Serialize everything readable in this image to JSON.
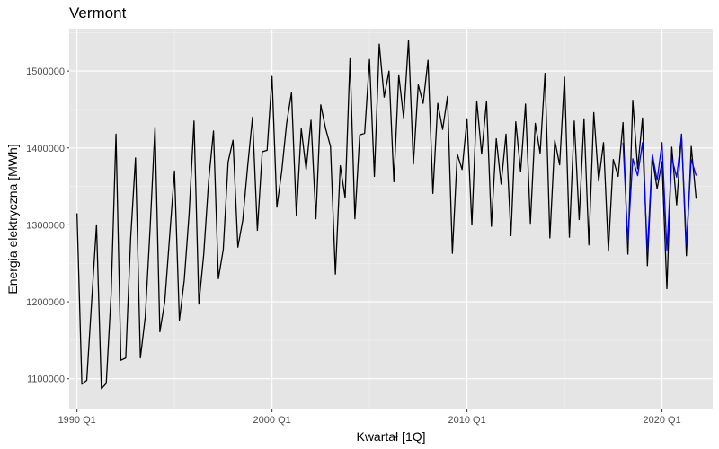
{
  "chart_data": {
    "type": "line",
    "title": "Vermont",
    "xlabel": "Kwartał [1Q]",
    "ylabel": "Energia elektryczna [MWh]",
    "x_start": "1990 Q1",
    "xlim": [
      1989.6,
      2022.6
    ],
    "ylim": [
      1060000,
      1555000
    ],
    "x_ticks": [
      {
        "label": "1990 Q1",
        "value": 1990
      },
      {
        "label": "2000 Q1",
        "value": 2000
      },
      {
        "label": "2010 Q1",
        "value": 2010
      },
      {
        "label": "2020 Q1",
        "value": 2020
      }
    ],
    "y_ticks": [
      {
        "label": "1100000",
        "value": 1100000
      },
      {
        "label": "1200000",
        "value": 1200000
      },
      {
        "label": "1300000",
        "value": 1300000
      },
      {
        "label": "1400000",
        "value": 1400000
      },
      {
        "label": "1500000",
        "value": 1500000
      }
    ],
    "grid": true,
    "background": "#e5e5e5",
    "series": [
      {
        "color": "#000000",
        "values": [
          1315000,
          1093000,
          1098000,
          1200000,
          1300000,
          1087000,
          1094000,
          1210000,
          1418000,
          1124000,
          1127000,
          1282000,
          1387000,
          1127000,
          1180000,
          1296000,
          1427000,
          1161000,
          1200000,
          1285000,
          1370000,
          1176000,
          1228000,
          1315000,
          1435000,
          1197000,
          1262000,
          1357000,
          1422000,
          1230000,
          1268000,
          1382000,
          1410000,
          1271000,
          1306000,
          1376000,
          1440000,
          1293000,
          1395000,
          1397000,
          1493000,
          1323000,
          1370000,
          1432000,
          1472000,
          1312000,
          1425000,
          1372000,
          1436000,
          1308000,
          1456000,
          1425000,
          1402000,
          1236000,
          1377000,
          1335000,
          1516000,
          1308000,
          1417000,
          1419000,
          1515000,
          1363000,
          1535000,
          1466000,
          1500000,
          1356000,
          1495000,
          1439000,
          1540000,
          1379000,
          1482000,
          1458000,
          1514000,
          1341000,
          1458000,
          1424000,
          1467000,
          1263000,
          1392000,
          1372000,
          1438000,
          1300000,
          1461000,
          1392000,
          1461000,
          1298000,
          1412000,
          1353000,
          1418000,
          1286000,
          1434000,
          1369000,
          1457000,
          1302000,
          1432000,
          1393000,
          1497000,
          1283000,
          1410000,
          1378000,
          1492000,
          1284000,
          1435000,
          1307000,
          1438000,
          1274000,
          1446000,
          1357000,
          1407000,
          1266000,
          1385000,
          1363000,
          1433000,
          1262000,
          1462000,
          1373000,
          1439000,
          1247000,
          1387000,
          1347000,
          1382000,
          1217000,
          1401000,
          1326000,
          1418000,
          1260000,
          1402000,
          1334000
        ]
      },
      {
        "color": "#0000ff",
        "x_start": "2018 Q1",
        "values": [
          1407000,
          1279000,
          1386000,
          1364000,
          1407000,
          1265000,
          1392000,
          1358000,
          1407000,
          1267000,
          1387000,
          1362000,
          1416000,
          1275000,
          1385000,
          1364000
        ]
      }
    ]
  }
}
